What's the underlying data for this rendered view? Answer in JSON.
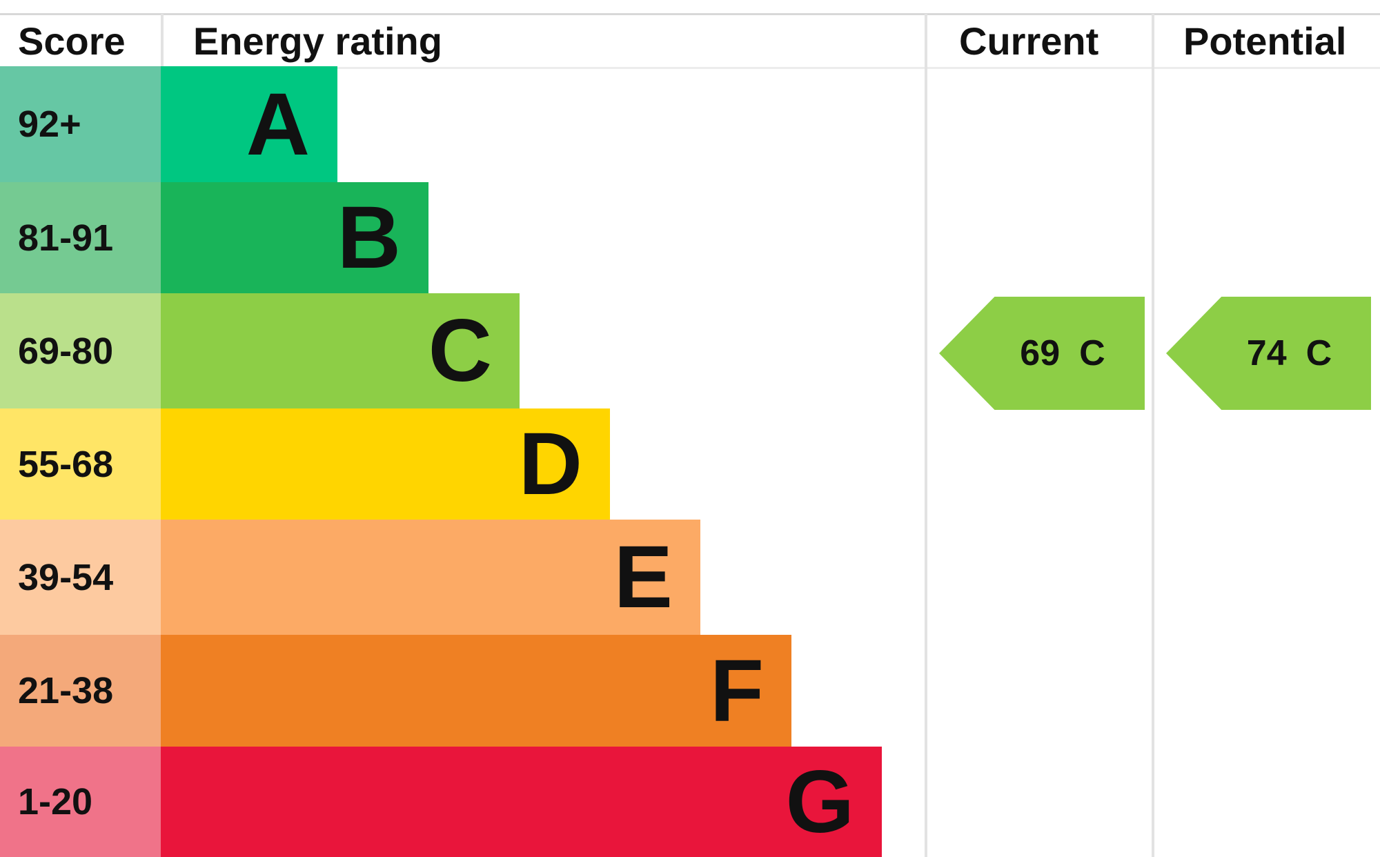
{
  "chart_data": {
    "type": "table",
    "headers": {
      "score": "Score",
      "rating": "Energy rating",
      "current": "Current",
      "potential": "Potential"
    },
    "bands": [
      {
        "score": "92+",
        "letter": "A",
        "color": "#00c781",
        "score_color": "#66c7a4"
      },
      {
        "score": "81-91",
        "letter": "B",
        "color": "#19b459",
        "score_color": "#75ca92"
      },
      {
        "score": "69-80",
        "letter": "C",
        "color": "#8dce46",
        "score_color": "#bae08b"
      },
      {
        "score": "55-68",
        "letter": "D",
        "color": "#ffd500",
        "score_color": "#ffe566"
      },
      {
        "score": "39-54",
        "letter": "E",
        "color": "#fcaa65",
        "score_color": "#fdcaa0"
      },
      {
        "score": "21-38",
        "letter": "F",
        "color": "#ef8023",
        "score_color": "#f4a97a"
      },
      {
        "score": "1-20",
        "letter": "G",
        "color": "#e9153b",
        "score_color": "#f07389"
      }
    ],
    "current": {
      "value": "69",
      "letter": "C",
      "color": "#8dce46"
    },
    "potential": {
      "value": "74",
      "letter": "C",
      "color": "#8dce46"
    }
  }
}
